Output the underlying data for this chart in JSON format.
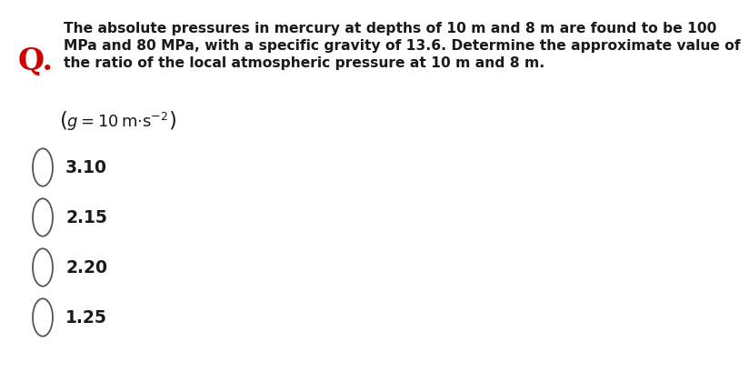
{
  "bg_color": "#ffffff",
  "q_label": "Q.",
  "q_label_color": "#cc0000",
  "question_line1": "The absolute pressures in mercury at depths of 10 m and 8 m are found to be 100",
  "question_line2": "MPa and 80 MPa, with a specific gravity of 13.6. Determine the approximate value of",
  "question_line3": "the ratio of the local atmospheric pressure at 10 m and 8 m.",
  "options": [
    "3.10",
    "2.15",
    "2.20",
    "1.25"
  ],
  "text_color": "#1a1a1a",
  "q_color": "#cc0000",
  "font_size_question": 11.2,
  "font_size_hint": 13.0,
  "font_size_options": 13.5,
  "font_size_q": 24,
  "circle_color": "#555555"
}
